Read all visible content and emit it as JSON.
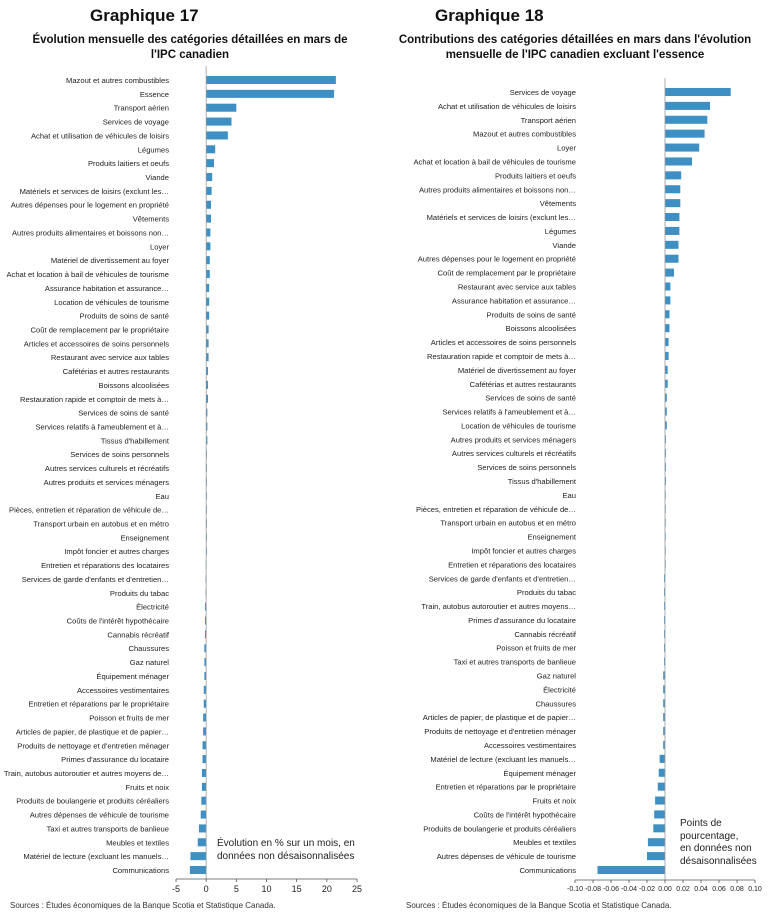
{
  "chart_data": [
    {
      "type": "bar",
      "orientation": "horizontal",
      "heading": "Graphique 17",
      "title": "Évolution mensuelle des catégories détaillées en mars de l'IPC canadien",
      "note": "Évolution en % sur un mois, en données non désaisonnalisées",
      "source": "Sources : Études économiques de la Banque Scotia et Statistique Canada.",
      "xlim": [
        -5,
        25
      ],
      "xticks": [
        -5,
        0,
        5,
        10,
        15,
        20,
        25
      ],
      "bar_color": "#3d8fc4",
      "categories": [
        "Mazout et autres combustibles",
        "Essence",
        "Transport aérien",
        "Services de voyage",
        "Achat et utilisation de véhicules de loisirs",
        "Légumes",
        "Produits laitiers et oeufs",
        "Viande",
        "Matériels et services de loisirs (exclunt les…",
        "Autres dépenses pour le logement en propriété",
        "Vêtements",
        "Autres produits alimentaires et boissons non…",
        "Loyer",
        "Matériel de divertissement au foyer",
        "Achat et location à bail de véhicules de tourisme",
        "Assurance habitation et assurance…",
        "Location de véhicules de tourisme",
        "Produits de soins de santé",
        "Coût de remplacement par le propriétaire",
        "Articles et accessoires de soins personnels",
        "Restaurant avec service aux tables",
        "Cafétérias et autres restaurants",
        "Boissons alcoolisées",
        "Restauration rapide et comptoir de mets à…",
        "Services de soins de santé",
        "Services relatifs à l'ameublement et à…",
        "Tissus d'habillement",
        "Services de soins personnels",
        "Autres services culturels et récréatifs",
        "Autres produits et services ménagers",
        "Eau",
        "Pièces, entretien et réparation de véhicule de…",
        "Transport urbain en autobus et en métro",
        "Enseignement",
        "Impôt foncier et autres charges",
        "Entretien et réparations des locataires",
        "Services de garde d'enfants et d'entretien…",
        "Produits du tabac",
        "Électricité",
        "Coûts de l'intérêt hypothécaire",
        "Cannabis récréatif",
        "Chaussures",
        "Gaz naturel",
        "Équipement ménager",
        "Accessoires vestimentaires",
        "Entretien et réparations par le propriétaire",
        "Poisson et fruits de mer",
        "Articles de papier, de plastique et de papier…",
        "Produits de nettoyage et d'entretien ménager",
        "Primes d'assurance du locataire",
        "Train, autobus autoroutier et autres moyens de…",
        "Fruits et noix",
        "Produits de boulangerie et produits céréaliers",
        "Autres dépenses de véhicule de tourisme",
        "Taxi et autres transports de banlieue",
        "Meubles et textiles",
        "Matériel de lecture (excluant les manuels…",
        "Communications"
      ],
      "values": [
        21.5,
        21.2,
        5.0,
        4.2,
        3.6,
        1.5,
        1.3,
        1.0,
        0.9,
        0.8,
        0.8,
        0.7,
        0.7,
        0.6,
        0.6,
        0.5,
        0.5,
        0.5,
        0.4,
        0.4,
        0.4,
        0.3,
        0.3,
        0.3,
        0.2,
        0.2,
        0.2,
        0.1,
        0.1,
        0.1,
        0.05,
        0.0,
        0.0,
        0.0,
        0.0,
        -0.05,
        -0.1,
        -0.1,
        -0.2,
        -0.2,
        -0.2,
        -0.3,
        -0.3,
        -0.3,
        -0.4,
        -0.4,
        -0.5,
        -0.5,
        -0.6,
        -0.6,
        -0.7,
        -0.7,
        -0.8,
        -0.9,
        -1.2,
        -1.4,
        -2.6,
        -2.7
      ]
    },
    {
      "type": "bar",
      "orientation": "horizontal",
      "heading": "Graphique 18",
      "title": "Contributions des catégories détaillées en mars dans l'évolution mensuelle de l'IPC canadien excluant l'essence",
      "note": "Points de pourcentage, en données non désaisonnalisées",
      "source": "Sources : Études économiques de la Banque Scotia et Statistique Canada.",
      "xlim": [
        -0.1,
        0.1
      ],
      "xticks": [
        -0.1,
        -0.08,
        -0.06,
        -0.04,
        -0.02,
        0.0,
        0.02,
        0.04,
        0.06,
        0.08,
        0.1
      ],
      "xtick_labels": [
        "-0.10",
        "-0.08",
        "-0.06",
        "-0.04",
        "-0.02",
        "0.00",
        "0.02",
        "0.04",
        "0.06",
        "0.08",
        "0.10"
      ],
      "bar_color": "#3d8fc4",
      "categories": [
        "Services de voyage",
        "Achat et utilisation de véhicules de loisirs",
        "Transport aérien",
        "Mazout et autres combustibles",
        "Loyer",
        "Achat et location à bail de véhicules de tourisme",
        "Produits laitiers et oeufs",
        "Autres produits alimentaires et boissons non…",
        "Vêtements",
        "Matériels et services de loisirs (exclunt les…",
        "Légumes",
        "Viande",
        "Autres dépenses pour le logement en propriété",
        "Coût de remplacement par le propriétaire",
        "Restaurant avec service aux tables",
        "Assurance habitation et assurance…",
        "Produits de soins de santé",
        "Boissons alcoolisées",
        "Articles et accessoires de soins personnels",
        "Restauration rapide et comptoir de mets à…",
        "Matériel de divertissement au foyer",
        "Cafétérias et autres restaurants",
        "Services de soins de santé",
        "Services relatifs à l'ameublement et à…",
        "Location de véhicules de tourisme",
        "Autres produits et services ménagers",
        "Autres services culturels et récréatifs",
        "Services de soins personnels",
        "Tissus d'habillement",
        "Eau",
        "Pièces, entretien et réparation de véhicule de…",
        "Transport urbain en autobus et en métro",
        "Enseignement",
        "Impôt foncier et autres charges",
        "Entretien et réparations des locataires",
        "Services de garde d'enfants et d'entretien…",
        "Produits du tabac",
        "Train, autobus autoroutier et autres moyens…",
        "Primes d'assurance du locataire",
        "Cannabis récréatif",
        "Poisson et fruits de mer",
        "Taxi et autres transports de banlieue",
        "Gaz naturel",
        "Électricité",
        "Chaussures",
        "Articles de papier, de plastique et de papier…",
        "Produits de nettoyage et d'entretien ménager",
        "Accessoires vestimentaires",
        "Matériel de lecture (excluant les manuels…",
        "Équipement ménager",
        "Entretien et réparations par le propriétaire",
        "Fruits et noix",
        "Coûts de l'intérêt hypothécaire",
        "Produits de boulangerie et produits céréaliers",
        "Meubles et textiles",
        "Autres dépenses de véhicule de tourisme",
        "Communications"
      ],
      "values": [
        0.073,
        0.05,
        0.047,
        0.044,
        0.038,
        0.03,
        0.018,
        0.017,
        0.017,
        0.016,
        0.016,
        0.015,
        0.015,
        0.01,
        0.006,
        0.006,
        0.005,
        0.005,
        0.004,
        0.004,
        0.003,
        0.003,
        0.002,
        0.002,
        0.002,
        0.001,
        0.001,
        0.001,
        0.001,
        0.0,
        0.0,
        0.0,
        0.0,
        0.0,
        0.0,
        -0.001,
        -0.001,
        -0.001,
        -0.001,
        -0.001,
        -0.001,
        -0.001,
        -0.002,
        -0.002,
        -0.002,
        -0.002,
        -0.002,
        -0.002,
        -0.006,
        -0.007,
        -0.008,
        -0.011,
        -0.012,
        -0.013,
        -0.019,
        -0.02,
        -0.075
      ]
    }
  ]
}
